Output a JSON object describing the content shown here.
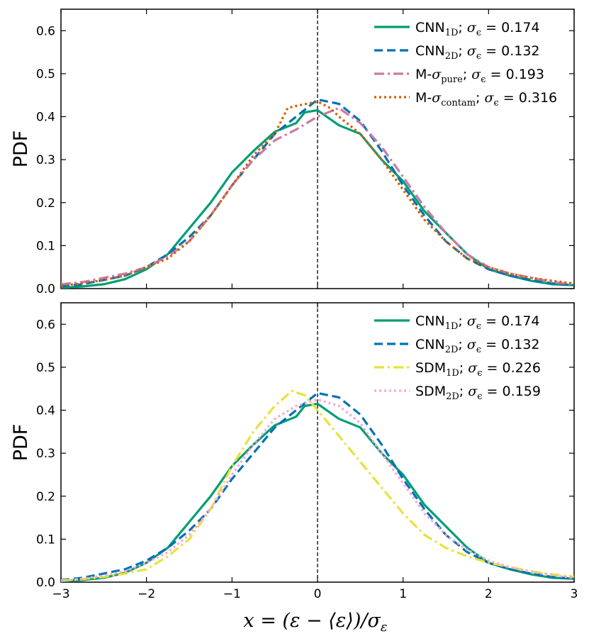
{
  "figure": {
    "xlabel": "x = (ε − ⟨ε⟩)/σ_ε",
    "xlabel_parts": {
      "lhs": "x",
      "eq": " = ",
      "open": "(",
      "eps": "ε",
      "minus": " − ",
      "avg": "⟨ε⟩",
      "close": ")",
      "slash": "/",
      "sigma": "σ",
      "sigma_sub": "ε"
    }
  },
  "chart_data": [
    {
      "type": "line",
      "title": "",
      "xlabel": "",
      "ylabel": "PDF",
      "xlim": [
        -3,
        3
      ],
      "ylim": [
        0,
        0.65
      ],
      "xticks": [
        -3,
        -2,
        -1,
        0,
        1,
        2,
        3
      ],
      "xtick_labels": [
        "−3",
        "−2",
        "−1",
        "0",
        "1",
        "2",
        "3"
      ],
      "yticks": [
        0.0,
        0.1,
        0.2,
        0.3,
        0.4,
        0.5,
        0.6
      ],
      "ytick_labels": [
        "0.0",
        "0.1",
        "0.2",
        "0.3",
        "0.4",
        "0.5",
        "0.6"
      ],
      "show_xtick_labels": false,
      "vline": 0,
      "legend_position": "top-right",
      "series": [
        {
          "name": "CNN",
          "sub": "1D",
          "sigma_label": "σ",
          "sigma_sub": "ϵ",
          "eq": " = ",
          "sigma_value": "0.174",
          "color": "#009e73",
          "style": "solid",
          "x": [
            -3.0,
            -2.75,
            -2.5,
            -2.25,
            -2.0,
            -1.75,
            -1.5,
            -1.25,
            -1.0,
            -0.75,
            -0.5,
            -0.25,
            -0.15,
            0.0,
            0.25,
            0.5,
            0.75,
            1.0,
            1.25,
            1.5,
            1.75,
            2.0,
            2.25,
            2.5,
            2.75,
            3.0
          ],
          "y": [
            0.002,
            0.005,
            0.01,
            0.022,
            0.045,
            0.08,
            0.14,
            0.2,
            0.27,
            0.32,
            0.365,
            0.385,
            0.41,
            0.415,
            0.38,
            0.36,
            0.3,
            0.25,
            0.18,
            0.13,
            0.08,
            0.045,
            0.03,
            0.018,
            0.01,
            0.008
          ]
        },
        {
          "name": "CNN",
          "sub": "2D",
          "sigma_label": "σ",
          "sigma_sub": "ϵ",
          "eq": " = ",
          "sigma_value": "0.132",
          "color": "#0072b2",
          "style": "dashed",
          "x": [
            -3.0,
            -2.75,
            -2.5,
            -2.25,
            -2.0,
            -1.75,
            -1.5,
            -1.25,
            -1.0,
            -0.75,
            -0.5,
            -0.25,
            0.0,
            0.25,
            0.5,
            0.75,
            1.0,
            1.25,
            1.5,
            1.75,
            2.0,
            2.25,
            2.5,
            2.75,
            3.0
          ],
          "y": [
            0.005,
            0.01,
            0.02,
            0.03,
            0.05,
            0.08,
            0.12,
            0.17,
            0.24,
            0.3,
            0.36,
            0.4,
            0.44,
            0.43,
            0.39,
            0.32,
            0.24,
            0.17,
            0.11,
            0.07,
            0.045,
            0.03,
            0.02,
            0.012,
            0.008
          ]
        },
        {
          "name": "M-",
          "sub": "pure",
          "sigma_label": "σ",
          "sigma_sub": "ϵ",
          "eq": " = ",
          "sigma_value": "0.193",
          "color": "#cc79a7",
          "style": "dashdot",
          "m_sigma": true,
          "x": [
            -3.0,
            -2.75,
            -2.5,
            -2.25,
            -2.0,
            -1.75,
            -1.5,
            -1.25,
            -1.0,
            -0.75,
            -0.5,
            -0.25,
            0.0,
            0.25,
            0.5,
            0.75,
            1.0,
            1.25,
            1.5,
            1.75,
            2.0,
            2.25,
            2.5,
            2.75,
            3.0
          ],
          "y": [
            0.01,
            0.015,
            0.025,
            0.035,
            0.05,
            0.075,
            0.11,
            0.17,
            0.24,
            0.3,
            0.345,
            0.37,
            0.4,
            0.42,
            0.385,
            0.33,
            0.26,
            0.19,
            0.13,
            0.08,
            0.05,
            0.035,
            0.025,
            0.015,
            0.01
          ]
        },
        {
          "name": "M-",
          "sub": "contam",
          "sigma_label": "σ",
          "sigma_sub": "ϵ",
          "eq": " = ",
          "sigma_value": "0.316",
          "color": "#d55e00",
          "style": "dotted",
          "m_sigma": true,
          "x": [
            -3.0,
            -2.75,
            -2.5,
            -2.25,
            -2.0,
            -1.75,
            -1.5,
            -1.25,
            -1.0,
            -0.75,
            -0.5,
            -0.35,
            -0.25,
            0.0,
            0.15,
            0.25,
            0.5,
            0.75,
            1.0,
            1.25,
            1.5,
            1.75,
            2.0,
            2.25,
            2.5,
            2.75,
            3.0
          ],
          "y": [
            0.007,
            0.012,
            0.02,
            0.03,
            0.05,
            0.07,
            0.11,
            0.17,
            0.24,
            0.31,
            0.36,
            0.42,
            0.425,
            0.435,
            0.42,
            0.4,
            0.36,
            0.3,
            0.23,
            0.16,
            0.11,
            0.07,
            0.05,
            0.035,
            0.025,
            0.018,
            0.012
          ]
        }
      ]
    },
    {
      "type": "line",
      "title": "",
      "xlabel": "",
      "ylabel": "PDF",
      "xlim": [
        -3,
        3
      ],
      "ylim": [
        0,
        0.65
      ],
      "xticks": [
        -3,
        -2,
        -1,
        0,
        1,
        2,
        3
      ],
      "xtick_labels": [
        "−3",
        "−2",
        "−1",
        "0",
        "1",
        "2",
        "3"
      ],
      "yticks": [
        0.0,
        0.1,
        0.2,
        0.3,
        0.4,
        0.5,
        0.6
      ],
      "ytick_labels": [
        "0.0",
        "0.1",
        "0.2",
        "0.3",
        "0.4",
        "0.5",
        "0.6"
      ],
      "show_xtick_labels": true,
      "vline": 0,
      "legend_position": "top-right",
      "series": [
        {
          "name": "CNN",
          "sub": "1D",
          "sigma_label": "σ",
          "sigma_sub": "ϵ",
          "eq": " = ",
          "sigma_value": "0.174",
          "color": "#009e73",
          "style": "solid",
          "x": [
            -3.0,
            -2.75,
            -2.5,
            -2.25,
            -2.0,
            -1.75,
            -1.5,
            -1.25,
            -1.0,
            -0.75,
            -0.5,
            -0.25,
            -0.15,
            0.0,
            0.25,
            0.5,
            0.75,
            1.0,
            1.25,
            1.5,
            1.75,
            2.0,
            2.25,
            2.5,
            2.75,
            3.0
          ],
          "y": [
            0.002,
            0.005,
            0.01,
            0.022,
            0.045,
            0.08,
            0.14,
            0.2,
            0.27,
            0.32,
            0.365,
            0.385,
            0.41,
            0.415,
            0.38,
            0.36,
            0.3,
            0.25,
            0.18,
            0.13,
            0.08,
            0.045,
            0.03,
            0.018,
            0.01,
            0.008
          ]
        },
        {
          "name": "CNN",
          "sub": "2D",
          "sigma_label": "σ",
          "sigma_sub": "ϵ",
          "eq": " = ",
          "sigma_value": "0.132",
          "color": "#0072b2",
          "style": "dashed",
          "x": [
            -3.0,
            -2.75,
            -2.5,
            -2.25,
            -2.0,
            -1.75,
            -1.5,
            -1.25,
            -1.0,
            -0.75,
            -0.5,
            -0.25,
            0.0,
            0.25,
            0.5,
            0.75,
            1.0,
            1.25,
            1.5,
            1.75,
            2.0,
            2.25,
            2.5,
            2.75,
            3.0
          ],
          "y": [
            0.005,
            0.01,
            0.02,
            0.03,
            0.05,
            0.08,
            0.12,
            0.17,
            0.24,
            0.3,
            0.36,
            0.4,
            0.44,
            0.43,
            0.39,
            0.32,
            0.24,
            0.17,
            0.11,
            0.07,
            0.045,
            0.03,
            0.02,
            0.012,
            0.008
          ]
        },
        {
          "name": "SDM",
          "sub": "1D",
          "sigma_label": "σ",
          "sigma_sub": "ϵ",
          "eq": " = ",
          "sigma_value": "0.226",
          "color": "#e8e23a",
          "style": "dashdot",
          "x": [
            -3.0,
            -2.75,
            -2.5,
            -2.25,
            -2.0,
            -1.75,
            -1.5,
            -1.25,
            -1.0,
            -0.75,
            -0.5,
            -0.3,
            -0.15,
            0.0,
            0.25,
            0.5,
            0.75,
            1.0,
            1.25,
            1.5,
            1.75,
            2.0,
            2.25,
            2.5,
            2.75,
            3.0
          ],
          "y": [
            0.004,
            0.007,
            0.012,
            0.02,
            0.03,
            0.06,
            0.1,
            0.17,
            0.27,
            0.35,
            0.41,
            0.445,
            0.435,
            0.4,
            0.34,
            0.28,
            0.22,
            0.16,
            0.11,
            0.08,
            0.06,
            0.045,
            0.035,
            0.025,
            0.018,
            0.013
          ]
        },
        {
          "name": "SDM",
          "sub": "2D",
          "sigma_label": "σ",
          "sigma_sub": "ϵ",
          "eq": " = ",
          "sigma_value": "0.159",
          "color": "#f7a6d8",
          "style": "dotted",
          "x": [
            -3.0,
            -2.75,
            -2.5,
            -2.25,
            -2.0,
            -1.75,
            -1.5,
            -1.25,
            -1.0,
            -0.75,
            -0.5,
            -0.25,
            0.0,
            0.25,
            0.5,
            0.75,
            1.0,
            1.25,
            1.5,
            1.75,
            2.0,
            2.25,
            2.5,
            2.75,
            3.0
          ],
          "y": [
            0.003,
            0.008,
            0.015,
            0.025,
            0.045,
            0.07,
            0.11,
            0.17,
            0.25,
            0.32,
            0.38,
            0.41,
            0.425,
            0.41,
            0.37,
            0.3,
            0.23,
            0.16,
            0.11,
            0.075,
            0.05,
            0.035,
            0.024,
            0.016,
            0.01
          ]
        }
      ]
    }
  ]
}
